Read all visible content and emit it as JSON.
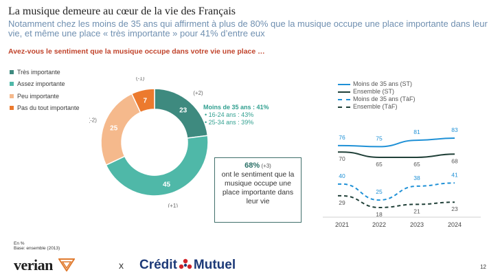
{
  "header": {
    "title": "La musique demeure au cœur de la vie des Français",
    "subtitle": "Notamment chez les moins de 35 ans qui affirment à plus de 80% que la musique occupe une place importante dans leur vie, et même une place « très importante » pour 41% d’entre eux",
    "question": "Avez-vous le sentiment que la musique occupe dans votre vie une place …"
  },
  "colors": {
    "tres_importante": "#3e8a7f",
    "assez_importante": "#4fb8a8",
    "peu_importante": "#f5b98c",
    "pas_du_tout": "#ec7a2e",
    "moins35_st": "#1e90d6",
    "ensemble_st": "#1f3f37",
    "moins35_taf": "#1e90d6",
    "ensemble_taf": "#1f3f37"
  },
  "chart_data": [
    {
      "type": "pie",
      "categories": [
        "Très importante",
        "Assez importante",
        "Peu importante",
        "Pas du tout importante"
      ],
      "values": [
        23,
        45,
        25,
        7
      ],
      "evolution_labels": [
        "(+2)",
        "(+1)",
        "(-2)",
        "(-1)"
      ]
    },
    {
      "type": "line",
      "x": [
        "2021",
        "2022",
        "2023",
        "2024"
      ],
      "series": [
        {
          "name": "Moins de 35 ans (ST)",
          "values": [
            76,
            75,
            81,
            83
          ],
          "style": "solid"
        },
        {
          "name": "Ensemble (ST)",
          "values": [
            70,
            65,
            65,
            68
          ],
          "style": "solid"
        },
        {
          "name": "Moins de 35 ans (TàF)",
          "values": [
            40,
            25,
            38,
            41
          ],
          "style": "dashed"
        },
        {
          "name": "Ensemble (TàF)",
          "values": [
            29,
            18,
            21,
            23
          ],
          "style": "dashed"
        }
      ]
    }
  ],
  "callout": {
    "heading": "Moins de 35 ans : 41%",
    "sub1": "• 16-24 ans : 43%",
    "sub2": "• 25-34 ans : 39%"
  },
  "box": {
    "big": "68%",
    "small": " (+3)",
    "text": "ont le sentiment que la musique occupe une place importante dans leur vie"
  },
  "footnote": {
    "line1": "En %",
    "line2": "Base: ensemble (2013)"
  },
  "logos": {
    "left": "verian",
    "separator": "x",
    "right_a": "Crédit",
    "right_b": "Mutuel"
  },
  "page_number": "12"
}
